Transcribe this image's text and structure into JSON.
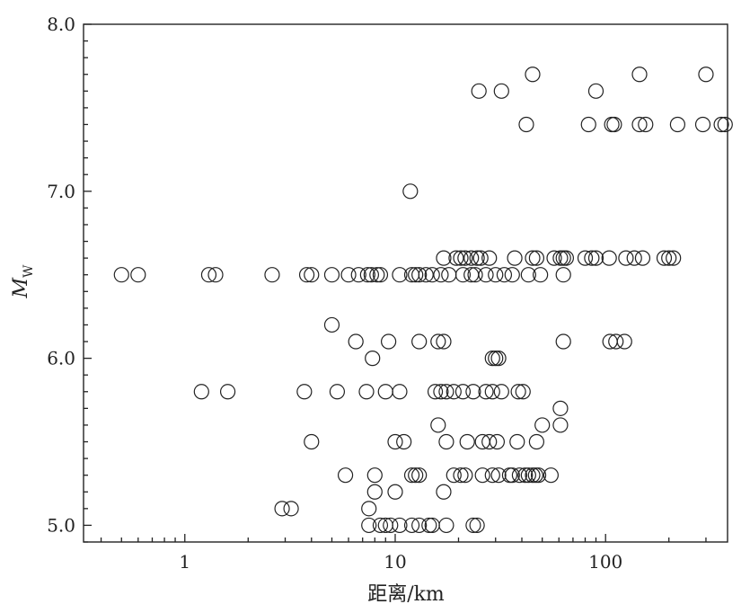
{
  "chart_data": {
    "type": "scatter",
    "title": "",
    "xlabel": "距离/km",
    "ylabel_main": "M",
    "ylabel_sub": "W",
    "x_scale": "log",
    "xlim": [
      0.33,
      380
    ],
    "ylim": [
      4.9,
      8.0
    ],
    "x_tick_labels": [
      {
        "value": 1,
        "label": "1"
      },
      {
        "value": 10,
        "label": "10"
      },
      {
        "value": 100,
        "label": "100"
      }
    ],
    "y_tick_labels": [
      {
        "value": 5.0,
        "label": "5.0"
      },
      {
        "value": 6.0,
        "label": "6.0"
      },
      {
        "value": 7.0,
        "label": "7.0"
      },
      {
        "value": 8.0,
        "label": "8.0"
      }
    ],
    "grid": false,
    "legend": false,
    "marker": "open-circle",
    "points": [
      [
        0.5,
        6.5
      ],
      [
        0.6,
        6.5
      ],
      [
        1.3,
        6.5
      ],
      [
        1.4,
        6.5
      ],
      [
        2.6,
        6.5
      ],
      [
        3.8,
        6.5
      ],
      [
        4.0,
        6.5
      ],
      [
        5.0,
        6.5
      ],
      [
        6.0,
        6.5
      ],
      [
        6.7,
        6.5
      ],
      [
        7.4,
        6.5
      ],
      [
        7.7,
        6.5
      ],
      [
        8.2,
        6.5
      ],
      [
        8.5,
        6.5
      ],
      [
        10.5,
        6.5
      ],
      [
        12.0,
        6.5
      ],
      [
        12.5,
        6.5
      ],
      [
        13.0,
        6.5
      ],
      [
        14.0,
        6.5
      ],
      [
        15.0,
        6.5
      ],
      [
        16.5,
        6.5
      ],
      [
        18.0,
        6.5
      ],
      [
        21.0,
        6.5
      ],
      [
        23.0,
        6.5
      ],
      [
        24.0,
        6.5
      ],
      [
        27.0,
        6.5
      ],
      [
        30.0,
        6.5
      ],
      [
        33.0,
        6.5
      ],
      [
        36.0,
        6.5
      ],
      [
        43.0,
        6.5
      ],
      [
        49.0,
        6.5
      ],
      [
        63.0,
        6.5
      ],
      [
        17.0,
        6.6
      ],
      [
        19.5,
        6.6
      ],
      [
        20.5,
        6.6
      ],
      [
        21.5,
        6.6
      ],
      [
        23.0,
        6.6
      ],
      [
        24.5,
        6.6
      ],
      [
        25.5,
        6.6
      ],
      [
        28.0,
        6.6
      ],
      [
        37.0,
        6.6
      ],
      [
        45.0,
        6.6
      ],
      [
        47.0,
        6.6
      ],
      [
        57.0,
        6.6
      ],
      [
        61.0,
        6.6
      ],
      [
        63.0,
        6.6
      ],
      [
        65.0,
        6.6
      ],
      [
        80.0,
        6.6
      ],
      [
        86.0,
        6.6
      ],
      [
        90.0,
        6.6
      ],
      [
        104.0,
        6.6
      ],
      [
        125.0,
        6.6
      ],
      [
        137.0,
        6.6
      ],
      [
        150.0,
        6.6
      ],
      [
        190.0,
        6.6
      ],
      [
        200.0,
        6.6
      ],
      [
        210.0,
        6.6
      ],
      [
        25.0,
        7.6
      ],
      [
        32.0,
        7.6
      ],
      [
        45.0,
        7.7
      ],
      [
        90.0,
        7.6
      ],
      [
        145.0,
        7.7
      ],
      [
        300.0,
        7.7
      ],
      [
        42.0,
        7.4
      ],
      [
        83.0,
        7.4
      ],
      [
        107.0,
        7.4
      ],
      [
        110.0,
        7.4
      ],
      [
        145.0,
        7.4
      ],
      [
        155.0,
        7.4
      ],
      [
        220.0,
        7.4
      ],
      [
        290.0,
        7.4
      ],
      [
        355.0,
        7.4
      ],
      [
        370.0,
        7.4
      ],
      [
        11.8,
        7.0
      ],
      [
        5.0,
        6.2
      ],
      [
        6.5,
        6.1
      ],
      [
        9.3,
        6.1
      ],
      [
        13.0,
        6.1
      ],
      [
        16.0,
        6.1
      ],
      [
        17.0,
        6.1
      ],
      [
        63.0,
        6.1
      ],
      [
        105.0,
        6.1
      ],
      [
        112.0,
        6.1
      ],
      [
        123.0,
        6.1
      ],
      [
        7.8,
        6.0
      ],
      [
        29.0,
        6.0
      ],
      [
        30.0,
        6.0
      ],
      [
        31.0,
        6.0
      ],
      [
        1.2,
        5.8
      ],
      [
        1.6,
        5.8
      ],
      [
        3.7,
        5.8
      ],
      [
        5.3,
        5.8
      ],
      [
        7.3,
        5.8
      ],
      [
        9.0,
        5.8
      ],
      [
        10.5,
        5.8
      ],
      [
        15.5,
        5.8
      ],
      [
        16.5,
        5.8
      ],
      [
        17.5,
        5.8
      ],
      [
        19.0,
        5.8
      ],
      [
        21.0,
        5.8
      ],
      [
        23.5,
        5.8
      ],
      [
        27.0,
        5.8
      ],
      [
        29.0,
        5.8
      ],
      [
        32.0,
        5.8
      ],
      [
        38.5,
        5.8
      ],
      [
        40.5,
        5.8
      ],
      [
        61.0,
        5.7
      ],
      [
        16.0,
        5.6
      ],
      [
        50.0,
        5.6
      ],
      [
        61.0,
        5.6
      ],
      [
        4.0,
        5.5
      ],
      [
        10.0,
        5.5
      ],
      [
        11.0,
        5.5
      ],
      [
        17.5,
        5.5
      ],
      [
        22.0,
        5.5
      ],
      [
        26.0,
        5.5
      ],
      [
        28.0,
        5.5
      ],
      [
        30.5,
        5.5
      ],
      [
        38.0,
        5.5
      ],
      [
        47.0,
        5.5
      ],
      [
        5.8,
        5.3
      ],
      [
        8.0,
        5.3
      ],
      [
        12.0,
        5.3
      ],
      [
        12.5,
        5.3
      ],
      [
        13.0,
        5.3
      ],
      [
        19.0,
        5.3
      ],
      [
        20.5,
        5.3
      ],
      [
        21.5,
        5.3
      ],
      [
        26.0,
        5.3
      ],
      [
        29.0,
        5.3
      ],
      [
        31.0,
        5.3
      ],
      [
        35.0,
        5.3
      ],
      [
        36.0,
        5.3
      ],
      [
        39.0,
        5.3
      ],
      [
        41.5,
        5.3
      ],
      [
        43.0,
        5.3
      ],
      [
        45.0,
        5.3
      ],
      [
        46.5,
        5.3
      ],
      [
        48.0,
        5.3
      ],
      [
        55.0,
        5.3
      ],
      [
        8.0,
        5.2
      ],
      [
        10.0,
        5.2
      ],
      [
        17.0,
        5.2
      ],
      [
        2.9,
        5.1
      ],
      [
        3.2,
        5.1
      ],
      [
        7.5,
        5.1
      ],
      [
        7.5,
        5.0
      ],
      [
        8.5,
        5.0
      ],
      [
        9.0,
        5.0
      ],
      [
        9.5,
        5.0
      ],
      [
        10.5,
        5.0
      ],
      [
        12.0,
        5.0
      ],
      [
        13.0,
        5.0
      ],
      [
        14.5,
        5.0
      ],
      [
        15.0,
        5.0
      ],
      [
        17.5,
        5.0
      ],
      [
        23.5,
        5.0
      ],
      [
        24.5,
        5.0
      ]
    ]
  }
}
